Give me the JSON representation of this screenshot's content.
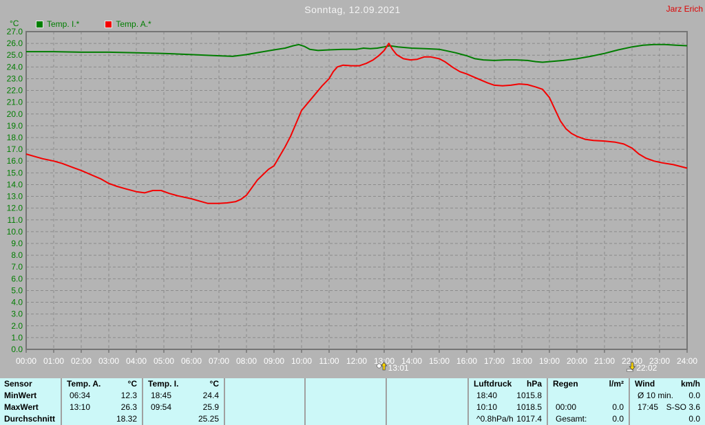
{
  "header": {
    "title": "Sonntag, 12.09.2021",
    "owner": "Jarz Erich"
  },
  "chart_data": {
    "type": "line",
    "title": "Sonntag, 12.09.2021",
    "xlabel": "",
    "ylabel": "°C",
    "ylim": [
      0,
      27
    ],
    "xlim_hours": [
      0,
      24
    ],
    "grid": true,
    "legend_position": "top-left",
    "y_ticks": [
      "27.0",
      "26.0",
      "25.0",
      "24.0",
      "23.0",
      "22.0",
      "21.0",
      "20.0",
      "19.0",
      "18.0",
      "17.0",
      "16.0",
      "15.0",
      "14.0",
      "13.0",
      "12.0",
      "11.0",
      "10.0",
      "9.0",
      "8.0",
      "7.0",
      "6.0",
      "5.0",
      "4.0",
      "3.0",
      "2.0",
      "1.0",
      "0.0"
    ],
    "x_ticks": [
      "00:00",
      "01:00",
      "02:00",
      "03:00",
      "04:00",
      "05:00",
      "06:00",
      "07:00",
      "08:00",
      "09:00",
      "10:00",
      "11:00",
      "12:00",
      "13:00",
      "14:00",
      "15:00",
      "16:00",
      "17:00",
      "18:00",
      "19:00",
      "20:00",
      "21:00",
      "22:00",
      "23:00",
      "24:00"
    ],
    "series": [
      {
        "name": "Temp. I.*",
        "color": "#007d00",
        "points": [
          [
            0,
            25.3
          ],
          [
            1,
            25.3
          ],
          [
            2,
            25.25
          ],
          [
            3,
            25.25
          ],
          [
            4,
            25.2
          ],
          [
            5,
            25.15
          ],
          [
            6,
            25.05
          ],
          [
            6.5,
            25.0
          ],
          [
            7,
            24.95
          ],
          [
            7.5,
            24.9
          ],
          [
            8,
            25.05
          ],
          [
            8.5,
            25.25
          ],
          [
            9,
            25.45
          ],
          [
            9.4,
            25.6
          ],
          [
            9.7,
            25.8
          ],
          [
            9.9,
            25.9
          ],
          [
            10.1,
            25.75
          ],
          [
            10.3,
            25.5
          ],
          [
            10.6,
            25.4
          ],
          [
            11,
            25.45
          ],
          [
            11.5,
            25.5
          ],
          [
            12,
            25.5
          ],
          [
            12.25,
            25.6
          ],
          [
            12.5,
            25.55
          ],
          [
            12.75,
            25.6
          ],
          [
            13,
            25.7
          ],
          [
            13.2,
            25.8
          ],
          [
            13.5,
            25.7
          ],
          [
            14,
            25.6
          ],
          [
            14.5,
            25.55
          ],
          [
            15,
            25.5
          ],
          [
            15.3,
            25.35
          ],
          [
            15.6,
            25.2
          ],
          [
            16,
            24.95
          ],
          [
            16.3,
            24.7
          ],
          [
            16.6,
            24.6
          ],
          [
            17,
            24.55
          ],
          [
            17.4,
            24.6
          ],
          [
            17.8,
            24.6
          ],
          [
            18.2,
            24.55
          ],
          [
            18.5,
            24.45
          ],
          [
            18.75,
            24.4
          ],
          [
            19,
            24.45
          ],
          [
            19.5,
            24.55
          ],
          [
            20,
            24.7
          ],
          [
            20.5,
            24.9
          ],
          [
            21,
            25.15
          ],
          [
            21.5,
            25.45
          ],
          [
            22,
            25.7
          ],
          [
            22.4,
            25.85
          ],
          [
            22.8,
            25.9
          ],
          [
            23.2,
            25.9
          ],
          [
            23.6,
            25.85
          ],
          [
            24,
            25.8
          ]
        ]
      },
      {
        "name": "Temp. A.*",
        "color": "#f40000",
        "points": [
          [
            0,
            16.6
          ],
          [
            0.3,
            16.4
          ],
          [
            0.6,
            16.2
          ],
          [
            1,
            16.0
          ],
          [
            1.3,
            15.8
          ],
          [
            1.7,
            15.45
          ],
          [
            2,
            15.2
          ],
          [
            2.4,
            14.8
          ],
          [
            2.7,
            14.5
          ],
          [
            3,
            14.1
          ],
          [
            3.3,
            13.85
          ],
          [
            3.6,
            13.65
          ],
          [
            4,
            13.4
          ],
          [
            4.3,
            13.3
          ],
          [
            4.6,
            13.5
          ],
          [
            4.9,
            13.5
          ],
          [
            5.2,
            13.25
          ],
          [
            5.5,
            13.05
          ],
          [
            6,
            12.8
          ],
          [
            6.3,
            12.6
          ],
          [
            6.6,
            12.4
          ],
          [
            7,
            12.4
          ],
          [
            7.3,
            12.45
          ],
          [
            7.6,
            12.55
          ],
          [
            7.8,
            12.75
          ],
          [
            8,
            13.1
          ],
          [
            8.2,
            13.75
          ],
          [
            8.4,
            14.4
          ],
          [
            8.6,
            14.85
          ],
          [
            8.8,
            15.3
          ],
          [
            9,
            15.6
          ],
          [
            9.2,
            16.4
          ],
          [
            9.4,
            17.2
          ],
          [
            9.6,
            18.1
          ],
          [
            9.8,
            19.2
          ],
          [
            10,
            20.3
          ],
          [
            10.25,
            21.0
          ],
          [
            10.5,
            21.7
          ],
          [
            10.75,
            22.4
          ],
          [
            11,
            23.0
          ],
          [
            11.15,
            23.6
          ],
          [
            11.3,
            24.0
          ],
          [
            11.5,
            24.15
          ],
          [
            11.8,
            24.1
          ],
          [
            12.1,
            24.1
          ],
          [
            12.35,
            24.3
          ],
          [
            12.6,
            24.6
          ],
          [
            12.8,
            24.95
          ],
          [
            13,
            25.4
          ],
          [
            13.17,
            26.0
          ],
          [
            13.3,
            25.5
          ],
          [
            13.45,
            25.05
          ],
          [
            13.7,
            24.7
          ],
          [
            13.95,
            24.6
          ],
          [
            14.2,
            24.65
          ],
          [
            14.45,
            24.85
          ],
          [
            14.7,
            24.85
          ],
          [
            15,
            24.7
          ],
          [
            15.2,
            24.45
          ],
          [
            15.5,
            23.95
          ],
          [
            15.75,
            23.6
          ],
          [
            16,
            23.4
          ],
          [
            16.25,
            23.15
          ],
          [
            16.5,
            22.9
          ],
          [
            16.75,
            22.65
          ],
          [
            17,
            22.45
          ],
          [
            17.3,
            22.4
          ],
          [
            17.6,
            22.45
          ],
          [
            17.9,
            22.55
          ],
          [
            18.2,
            22.5
          ],
          [
            18.5,
            22.3
          ],
          [
            18.75,
            22.1
          ],
          [
            19,
            21.4
          ],
          [
            19.2,
            20.4
          ],
          [
            19.4,
            19.4
          ],
          [
            19.6,
            18.75
          ],
          [
            19.8,
            18.35
          ],
          [
            20,
            18.1
          ],
          [
            20.3,
            17.85
          ],
          [
            20.6,
            17.75
          ],
          [
            21,
            17.7
          ],
          [
            21.4,
            17.6
          ],
          [
            21.7,
            17.45
          ],
          [
            22,
            17.1
          ],
          [
            22.25,
            16.6
          ],
          [
            22.5,
            16.25
          ],
          [
            22.8,
            16.0
          ],
          [
            23.1,
            15.85
          ],
          [
            23.5,
            15.7
          ],
          [
            24,
            15.4
          ]
        ]
      }
    ],
    "markers": [
      {
        "label": "13:01",
        "hour": 13.017,
        "direction": "up"
      },
      {
        "label": "22:02",
        "hour": 22.033,
        "direction": "down"
      }
    ]
  },
  "stats": {
    "row_labels": [
      "Sensor",
      "MinWert",
      "MaxWert",
      "Durchschnitt"
    ],
    "sections": [
      {
        "name": "Temp. A.",
        "unit": "°C",
        "rows": [
          [
            "06:34",
            "12.3"
          ],
          [
            "13:10",
            "26.3"
          ],
          [
            "",
            "18.32"
          ]
        ]
      },
      {
        "name": "Temp. I.",
        "unit": "°C",
        "rows": [
          [
            "18:45",
            "24.4"
          ],
          [
            "09:54",
            "25.9"
          ],
          [
            "",
            "25.25"
          ]
        ]
      },
      {
        "name": "Luftdruck",
        "unit": "hPa",
        "rows": [
          [
            "18:40",
            "1015.8"
          ],
          [
            "10:10",
            "1018.5"
          ],
          [
            "^0.8hPa/h",
            "1017.4"
          ]
        ]
      },
      {
        "name": "Regen",
        "unit": "l/m²",
        "rows": [
          [
            "",
            ""
          ],
          [
            "00:00",
            "0.0"
          ],
          [
            "Gesamt:",
            "0.0"
          ]
        ]
      },
      {
        "name": "Wind",
        "unit": "km/h",
        "rows": [
          [
            "Ø 10 min.",
            "0.0"
          ],
          [
            "17:45",
            "S-SO 3.6"
          ],
          [
            "",
            "0.0"
          ]
        ]
      }
    ]
  }
}
